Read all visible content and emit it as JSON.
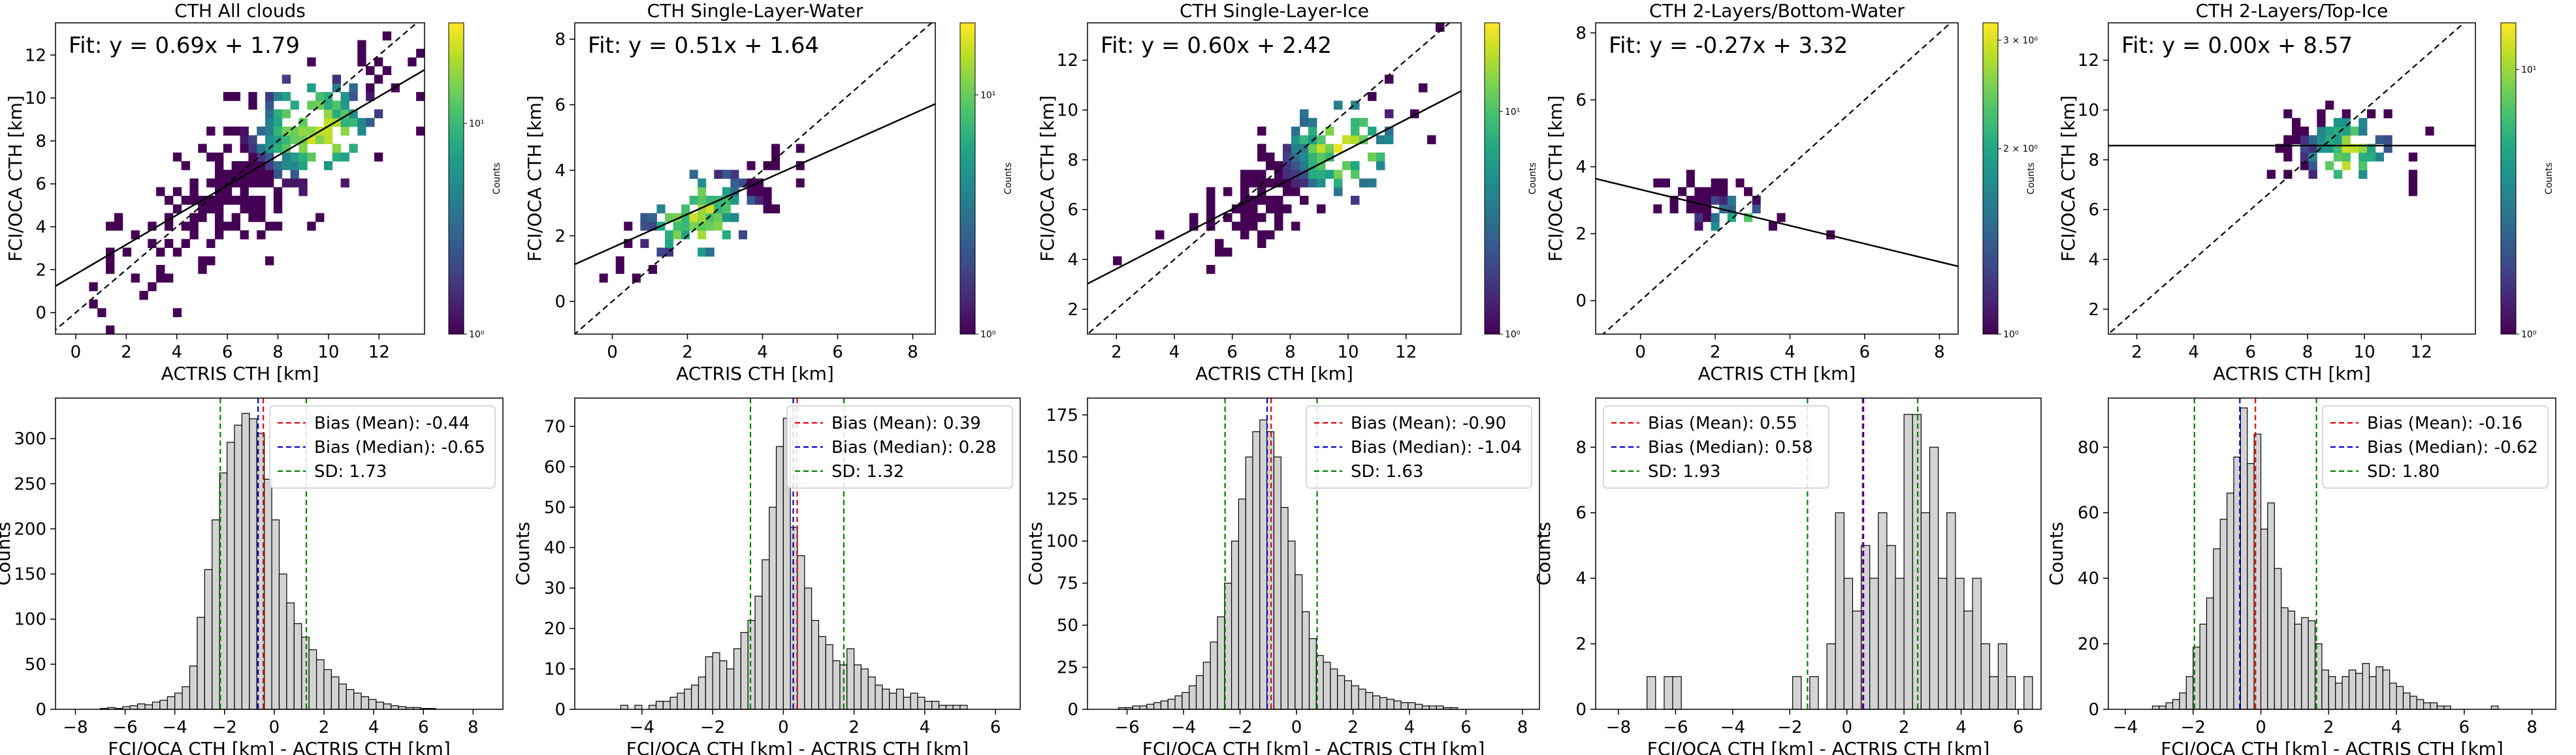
{
  "chart_data": [
    {
      "type": "heatmap",
      "title": "CTH All clouds",
      "xlabel": "ACTRIS CTH [km]",
      "ylabel": "FCI/OCA CTH [km]",
      "xlim": [
        -0.8,
        13.8
      ],
      "ylim": [
        -1.0,
        13.5
      ],
      "xticks": [
        0,
        2,
        4,
        6,
        8,
        10,
        12
      ],
      "yticks": [
        0,
        2,
        4,
        6,
        8,
        10,
        12
      ],
      "fit_label": "Fit: y = 0.69x + 1.79",
      "fit": {
        "slope": 0.69,
        "intercept": 1.79
      },
      "colorbar": {
        "label": "Counts",
        "scale": "log",
        "ticks": [
          "10⁰",
          "10¹"
        ],
        "tick_values": [
          1,
          10
        ],
        "range": [
          1,
          30
        ]
      },
      "cloud": {
        "cx": 7.5,
        "cy": 7.0,
        "spread": 3.0,
        "peak": [
          9.5,
          8.5
        ],
        "maxCount": 30
      }
    },
    {
      "type": "heatmap",
      "title": "CTH Single-Layer-Water",
      "xlabel": "ACTRIS CTH [km]",
      "ylabel": "FCI/OCA CTH [km]",
      "xlim": [
        -1.0,
        8.6
      ],
      "ylim": [
        -1.0,
        8.5
      ],
      "xticks": [
        0,
        2,
        4,
        6,
        8
      ],
      "yticks": [
        0,
        2,
        4,
        6,
        8
      ],
      "fit_label": "Fit: y = 0.51x + 1.64",
      "fit": {
        "slope": 0.51,
        "intercept": 1.64
      },
      "colorbar": {
        "label": "Counts",
        "scale": "log",
        "ticks": [
          "10⁰",
          "10¹"
        ],
        "tick_values": [
          1,
          10
        ],
        "range": [
          1,
          20
        ]
      },
      "cloud": {
        "cx": 2.5,
        "cy": 2.8,
        "spread": 1.2,
        "peak": [
          2.3,
          2.6
        ],
        "maxCount": 20
      }
    },
    {
      "type": "heatmap",
      "title": "CTH Single-Layer-Ice",
      "xlabel": "ACTRIS CTH [km]",
      "ylabel": "FCI/OCA CTH [km]",
      "xlim": [
        1.0,
        13.9
      ],
      "ylim": [
        1.0,
        13.5
      ],
      "xticks": [
        2,
        4,
        6,
        8,
        10,
        12
      ],
      "yticks": [
        2,
        4,
        6,
        8,
        10,
        12
      ],
      "fit_label": "Fit: y = 0.60x + 2.42",
      "fit": {
        "slope": 0.6,
        "intercept": 2.42
      },
      "colorbar": {
        "label": "Counts",
        "scale": "log",
        "ticks": [
          "10⁰",
          "10¹"
        ],
        "tick_values": [
          1,
          10
        ],
        "range": [
          1,
          25
        ]
      },
      "cloud": {
        "cx": 8.2,
        "cy": 7.5,
        "spread": 2.0,
        "peak": [
          9.8,
          8.5
        ],
        "maxCount": 25
      }
    },
    {
      "type": "heatmap",
      "title": "CTH 2-Layers/Bottom-Water",
      "xlabel": "ACTRIS CTH [km]",
      "ylabel": "FCI/OCA CTH [km]",
      "xlim": [
        -1.2,
        8.5
      ],
      "ylim": [
        -1.0,
        8.3
      ],
      "xticks": [
        0,
        2,
        4,
        6,
        8
      ],
      "yticks": [
        0,
        2,
        4,
        6,
        8
      ],
      "fit_label": "Fit: y = -0.27x + 3.32",
      "fit": {
        "slope": -0.27,
        "intercept": 3.32
      },
      "colorbar": {
        "label": "Counts",
        "scale": "log",
        "ticks": [
          "10⁰",
          "2 × 10⁰",
          "3 × 10⁰"
        ],
        "tick_values": [
          1,
          2,
          3
        ],
        "range": [
          1,
          3.2
        ]
      },
      "cloud": {
        "cx": 2.0,
        "cy": 3.0,
        "spread": 0.9,
        "peak": [
          2.4,
          2.4
        ],
        "maxCount": 3
      }
    },
    {
      "type": "heatmap",
      "title": "CTH 2-Layers/Top-Ice",
      "xlabel": "ACTRIS CTH [km]",
      "ylabel": "FCI/OCA CTH [km]",
      "xlim": [
        1.0,
        13.9
      ],
      "ylim": [
        1.0,
        13.5
      ],
      "xticks": [
        2,
        4,
        6,
        8,
        10,
        12
      ],
      "yticks": [
        2,
        4,
        6,
        8,
        10,
        12
      ],
      "fit_label": "Fit: y = 0.00x + 8.57",
      "fit": {
        "slope": 0.0,
        "intercept": 8.57
      },
      "colorbar": {
        "label": "Counts",
        "scale": "log",
        "ticks": [
          "10⁰",
          "10¹"
        ],
        "tick_values": [
          1,
          10
        ],
        "range": [
          1,
          15
        ]
      },
      "cloud": {
        "cx": 9.0,
        "cy": 8.6,
        "spread": 1.4,
        "peak": [
          9.5,
          8.3
        ],
        "maxCount": 15
      }
    },
    {
      "type": "bar",
      "subtype": "histogram",
      "xlabel": "FCI/OCA CTH [km] - ACTRIS CTH [km]",
      "ylabel": "Counts",
      "xlim": [
        -8.8,
        9.2
      ],
      "ylim": [
        0,
        345
      ],
      "xticks": [
        -8,
        -6,
        -4,
        -2,
        0,
        2,
        4,
        6,
        8
      ],
      "yticks": [
        0,
        50,
        100,
        150,
        200,
        250,
        300
      ],
      "bin_start": -7.0,
      "bin_width": 0.3,
      "values": [
        1,
        2,
        1,
        3,
        4,
        6,
        5,
        8,
        10,
        14,
        18,
        25,
        48,
        102,
        155,
        210,
        262,
        296,
        315,
        328,
        322,
        306,
        255,
        210,
        150,
        118,
        95,
        80,
        66,
        55,
        44,
        36,
        28,
        22,
        18,
        14,
        11,
        8,
        6,
        4,
        3,
        2,
        2,
        1,
        1
      ],
      "mean": -0.44,
      "median": -0.65,
      "sd": 1.73,
      "legend": {
        "position": "upper right",
        "entries": [
          "Bias (Mean): -0.44",
          "Bias (Median): -0.65",
          "SD: 1.73"
        ]
      }
    },
    {
      "type": "bar",
      "subtype": "histogram",
      "xlabel": "FCI/OCA CTH [km] - ACTRIS CTH [km]",
      "ylabel": "Counts",
      "xlim": [
        -5.9,
        6.7
      ],
      "ylim": [
        0,
        77
      ],
      "xticks": [
        -4,
        -2,
        0,
        2,
        4,
        6
      ],
      "yticks": [
        0,
        10,
        20,
        30,
        40,
        50,
        60,
        70
      ],
      "bin_start": -4.6,
      "bin_width": 0.2,
      "values": [
        1,
        0,
        1,
        0,
        1,
        2,
        2,
        3,
        4,
        5,
        6,
        8,
        13,
        14,
        12,
        10,
        15,
        19,
        22,
        28,
        37,
        50,
        65,
        72,
        45,
        38,
        30,
        22,
        18,
        16,
        12,
        11,
        15,
        11,
        10,
        8,
        6,
        5,
        4,
        5,
        3,
        4,
        3,
        2,
        2,
        1,
        1,
        1,
        1
      ],
      "mean": 0.39,
      "median": 0.28,
      "sd": 1.32,
      "legend": {
        "position": "upper right",
        "entries": [
          "Bias (Mean): 0.39",
          "Bias (Median): 0.28",
          "SD: 1.32"
        ]
      }
    },
    {
      "type": "bar",
      "subtype": "histogram",
      "xlabel": "FCI/OCA CTH [km] - ACTRIS CTH [km]",
      "ylabel": "Counts",
      "xlim": [
        -7.4,
        8.6
      ],
      "ylim": [
        0,
        185
      ],
      "xticks": [
        -6,
        -4,
        -2,
        0,
        2,
        4,
        6,
        8
      ],
      "yticks": [
        0,
        25,
        50,
        75,
        100,
        125,
        150,
        175
      ],
      "bin_start": -6.3,
      "bin_width": 0.25,
      "values": [
        1,
        1,
        2,
        2,
        3,
        4,
        5,
        6,
        8,
        10,
        14,
        20,
        28,
        40,
        55,
        75,
        100,
        125,
        150,
        165,
        172,
        165,
        150,
        120,
        100,
        80,
        58,
        42,
        32,
        28,
        24,
        20,
        17,
        14,
        12,
        10,
        8,
        7,
        6,
        5,
        4,
        4,
        3,
        2,
        2,
        2,
        1,
        1
      ],
      "mean": -0.9,
      "median": -1.04,
      "sd": 1.63,
      "legend": {
        "position": "upper right",
        "entries": [
          "Bias (Mean): -0.90",
          "Bias (Median): -1.04",
          "SD: 1.63"
        ]
      }
    },
    {
      "type": "bar",
      "subtype": "histogram",
      "xlabel": "FCI/OCA CTH [km] - ACTRIS CTH [km]",
      "ylabel": "Counts",
      "xlim": [
        -8.8,
        6.8
      ],
      "ylim": [
        0,
        9.5
      ],
      "xticks": [
        -8,
        -6,
        -4,
        -2,
        0,
        2,
        4,
        6
      ],
      "yticks": [
        0,
        2,
        4,
        6,
        8
      ],
      "bin_start": -7.0,
      "bin_width": 0.3,
      "values": [
        1,
        0,
        1,
        1,
        0,
        0,
        0,
        0,
        0,
        0,
        0,
        0,
        0,
        0,
        0,
        0,
        0,
        1,
        0,
        1,
        0,
        2,
        6,
        4,
        3,
        5,
        4,
        6,
        5,
        4,
        9,
        9,
        6,
        8,
        4,
        6,
        4,
        3,
        4,
        2,
        1,
        2,
        1,
        0,
        1
      ],
      "mean": 0.55,
      "median": 0.58,
      "sd": 1.93,
      "legend": {
        "position": "upper left",
        "entries": [
          "Bias (Mean): 0.55",
          "Bias (Median): 0.58",
          "SD: 1.93"
        ]
      }
    },
    {
      "type": "bar",
      "subtype": "histogram",
      "xlabel": "FCI/OCA CTH [km] - ACTRIS CTH [km]",
      "ylabel": "Counts",
      "xlim": [
        -4.5,
        8.7
      ],
      "ylim": [
        0,
        95
      ],
      "xticks": [
        -4,
        -2,
        0,
        2,
        4,
        6,
        8
      ],
      "yticks": [
        0,
        20,
        40,
        60,
        80
      ],
      "bin_start": -3.2,
      "bin_width": 0.2,
      "values": [
        1,
        1,
        2,
        3,
        5,
        10,
        19,
        26,
        34,
        49,
        58,
        66,
        77,
        92,
        75,
        84,
        55,
        63,
        43,
        31,
        30,
        26,
        28,
        27,
        20,
        12,
        10,
        8,
        10,
        12,
        11,
        14,
        10,
        13,
        12,
        8,
        7,
        5,
        4,
        3,
        2,
        2,
        1,
        1,
        0,
        0,
        0,
        0,
        0,
        0,
        1,
        0,
        0
      ],
      "mean": -0.16,
      "median": -0.62,
      "sd": 1.8,
      "legend": {
        "position": "upper right",
        "entries": [
          "Bias (Mean): -0.16",
          "Bias (Median): -0.62",
          "SD: 1.80"
        ]
      }
    }
  ]
}
